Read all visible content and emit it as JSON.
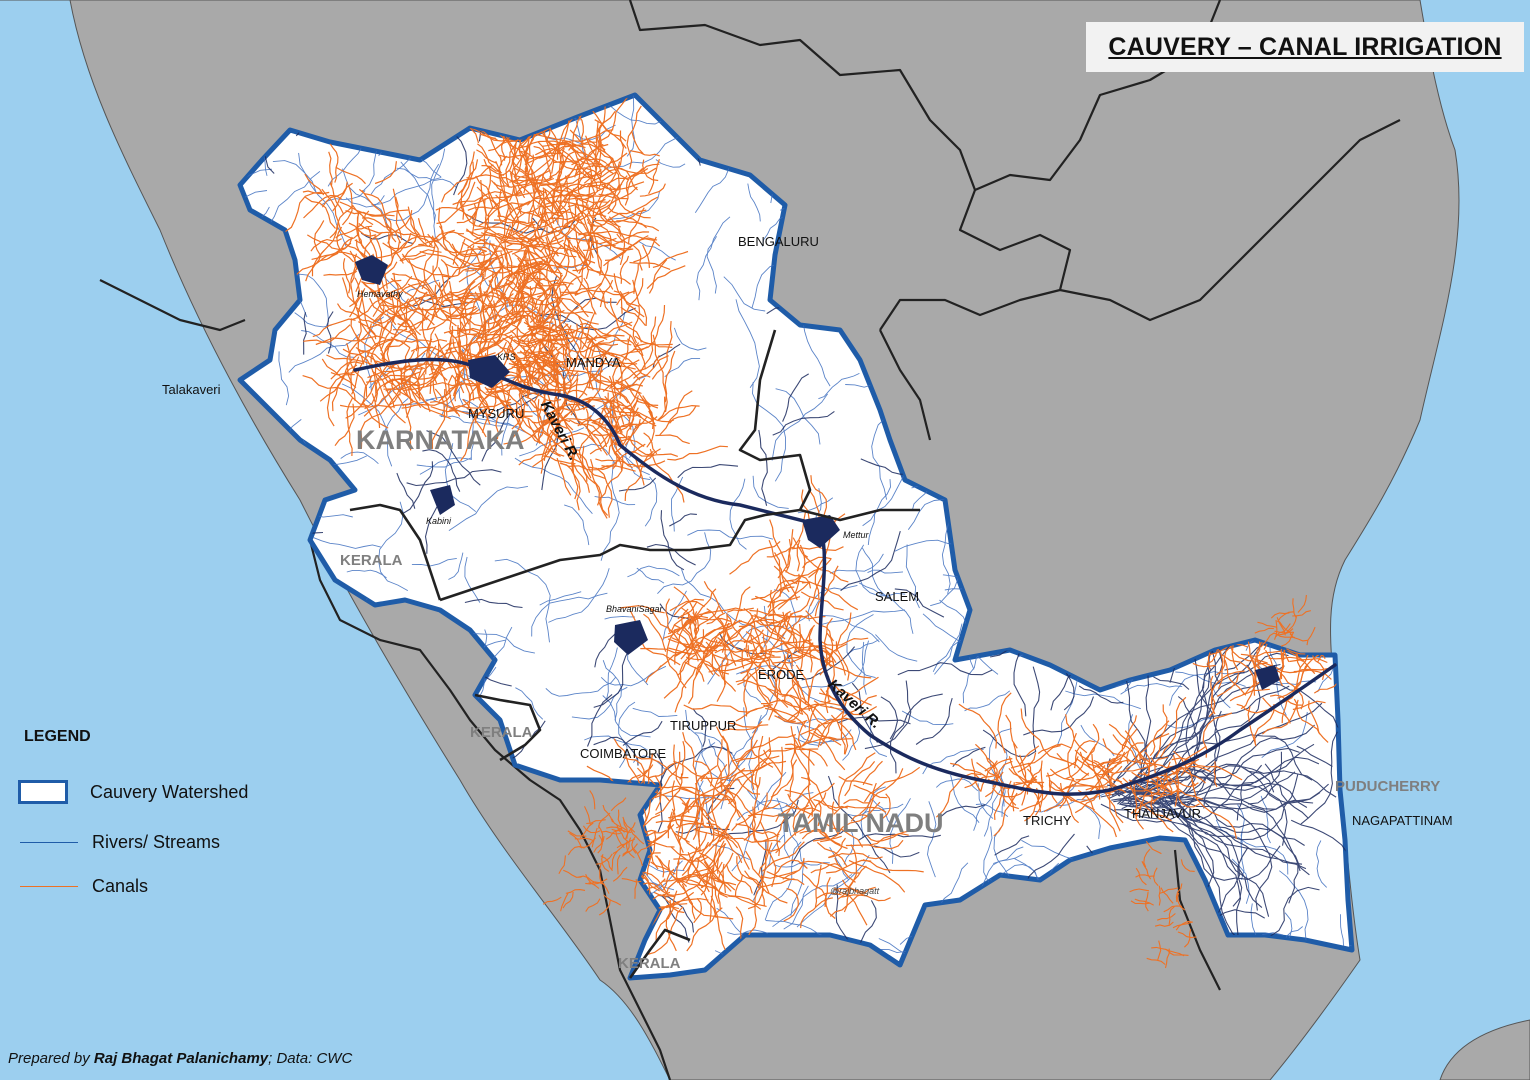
{
  "map": {
    "title": "CAUVERY – CANAL IRRIGATION",
    "colors": {
      "sea": "#9ccfef",
      "land": "#a9a9a9",
      "watershed_fill": "#ffffff",
      "watershed_border": "#1f5ca8",
      "river": "#3f6fbf",
      "river_dark": "#1b2a5e",
      "canal": "#ee7124",
      "state_boundary": "#222222"
    },
    "states": [
      {
        "name": "KARNATAKA"
      },
      {
        "name": "KERALA"
      },
      {
        "name": "KERALA"
      },
      {
        "name": "KERALA"
      },
      {
        "name": "TAMIL NADU"
      },
      {
        "name": "PUDUCHERRY"
      }
    ],
    "cities": [
      "BENGALURU",
      "MANDYA",
      "MYSURU",
      "Talakaveri",
      "SALEM",
      "ERODE",
      "TIRUPPUR",
      "COIMBATORE",
      "TRICHY",
      "THANJAVUR",
      "NAGAPATTINAM"
    ],
    "reservoirs": [
      "Hemavathy",
      "KRS",
      "Kabini",
      "Mettur",
      "BhavaniSagar"
    ],
    "river_labels": [
      "Kaveri R.",
      "Kaveri R."
    ],
    "watermark": "@rajbhagatt"
  },
  "legend": {
    "heading": "LEGEND",
    "items": [
      {
        "label": "Cauvery Watershed",
        "symbol": "box"
      },
      {
        "label": "Rivers/ Streams",
        "symbol": "river-line"
      },
      {
        "label": "Canals",
        "symbol": "canal-line"
      }
    ]
  },
  "credit": {
    "prefix": "Prepared by ",
    "author": "Raj Bhagat Palanichamy",
    "suffix": "; Data: CWC"
  }
}
